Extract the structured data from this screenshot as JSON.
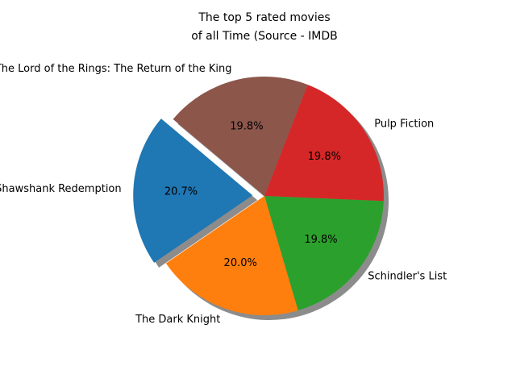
{
  "chart_data": {
    "type": "pie",
    "title_lines": [
      "The top 5 rated movies",
      "of all Time (Source - IMDB"
    ],
    "categories": [
      "The Shawshank Redemption",
      "The Dark Knight",
      "Schindler's List",
      "Pulp Fiction",
      "The Lord of the Rings: The Return of the King"
    ],
    "values": [
      9.3,
      9.0,
      8.9,
      8.9,
      8.9
    ],
    "percent_labels": [
      "20.7%",
      "20.0%",
      "19.8%",
      "19.8%",
      "19.8%"
    ],
    "colors": [
      "#1f77b4",
      "#ff7f0e",
      "#2ca02c",
      "#d62728",
      "#8c564b"
    ],
    "exploded": [
      true,
      false,
      false,
      false,
      false
    ],
    "shadow": true,
    "start_angle_deg": 140,
    "direction": "counterclockwise"
  }
}
